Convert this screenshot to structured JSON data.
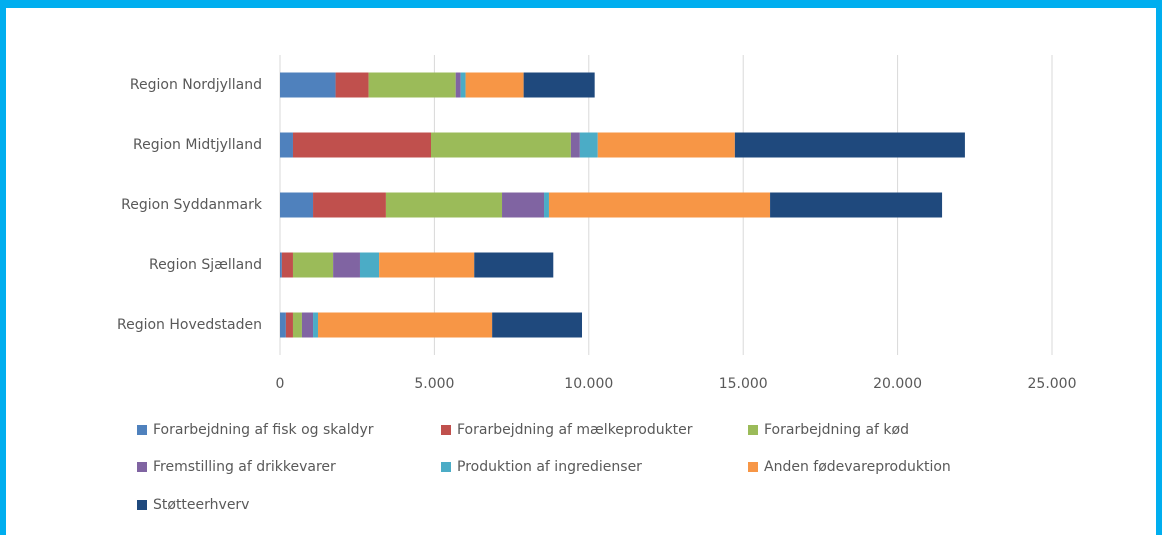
{
  "chart_data": {
    "type": "stacked-bar-horizontal",
    "categories": [
      "Region Nordjylland",
      "Region Midtjylland",
      "Region Syddanmark",
      "Region Sjælland",
      "Region Hovedstaden"
    ],
    "series": [
      {
        "name": "Forarbejdning af fisk og skaldyr",
        "color": "#4f81bd",
        "values": [
          1800,
          420,
          1070,
          60,
          190
        ]
      },
      {
        "name": "Forarbejdning af mælkeprodukter",
        "color": "#c0504d",
        "values": [
          1070,
          4470,
          2360,
          360,
          230
        ]
      },
      {
        "name": "Forarbejdning af kød",
        "color": "#9bbb59",
        "values": [
          2820,
          4530,
          3760,
          1300,
          290
        ]
      },
      {
        "name": "Fremstilling af drikkevarer",
        "color": "#8064a2",
        "values": [
          160,
          290,
          1360,
          870,
          360
        ]
      },
      {
        "name": "Produktion af ingredienser",
        "color": "#4bacc6",
        "values": [
          160,
          580,
          160,
          620,
          160
        ]
      },
      {
        "name": "Anden fødevareproduktion",
        "color": "#f79646",
        "values": [
          1880,
          4440,
          7160,
          3080,
          5640
        ]
      },
      {
        "name": "Støtteerhverv",
        "color": "#1f497d",
        "values": [
          2300,
          7450,
          5570,
          2560,
          2910
        ]
      }
    ],
    "xlim": [
      0,
      25000
    ],
    "xticks": [
      0,
      {
        "value": 5000,
        "label": "5.000"
      },
      {
        "value": 10000,
        "label": "10.000"
      },
      {
        "value": 15000,
        "label": "15.000"
      },
      {
        "value": 20000,
        "label": "20.000"
      },
      {
        "value": 25000,
        "label": "25.000"
      }
    ],
    "grid": true,
    "legend": "bottom"
  }
}
